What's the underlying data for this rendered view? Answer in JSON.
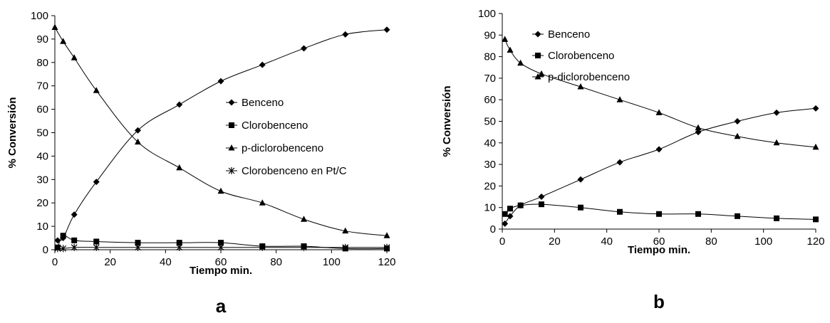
{
  "chart_data": [
    {
      "panel_label": "a",
      "type": "line",
      "xlabel": "Tiempo min.",
      "ylabel": "% Conversión",
      "xlim": [
        0,
        120
      ],
      "ylim": [
        0,
        100
      ],
      "xticks": [
        0,
        20,
        40,
        60,
        80,
        100,
        120
      ],
      "yticks": [
        0,
        10,
        20,
        30,
        40,
        50,
        60,
        70,
        80,
        90,
        100
      ],
      "grid": false,
      "legend_position": "right",
      "series": [
        {
          "name": "Benceno",
          "marker": "diamond",
          "x": [
            1,
            3,
            7,
            15,
            30,
            45,
            60,
            75,
            90,
            105,
            120
          ],
          "y": [
            4,
            5,
            15,
            29,
            51,
            62,
            72,
            79,
            86,
            92,
            94
          ]
        },
        {
          "name": "Clorobenceno",
          "marker": "square",
          "x": [
            1,
            3,
            7,
            15,
            30,
            45,
            60,
            75,
            90,
            105,
            120
          ],
          "y": [
            1,
            6,
            4,
            3.5,
            3,
            3,
            3,
            1.5,
            1.5,
            0.5,
            0.5
          ]
        },
        {
          "name": "p-diclorobenceno",
          "marker": "triangle",
          "x": [
            0,
            3,
            7,
            15,
            30,
            45,
            60,
            75,
            90,
            105,
            120
          ],
          "y": [
            95,
            89,
            82,
            68,
            46,
            35,
            25,
            20,
            13,
            8,
            6
          ]
        },
        {
          "name": "Clorobenceno en Pt/C",
          "marker": "star",
          "x": [
            1,
            3,
            7,
            15,
            30,
            45,
            60,
            75,
            90,
            105,
            120
          ],
          "y": [
            0.5,
            0.5,
            1,
            1,
            1,
            1,
            1,
            1,
            1,
            1,
            1
          ]
        }
      ]
    },
    {
      "panel_label": "b",
      "type": "line",
      "xlabel": "Tiempo min.",
      "ylabel": "% Conversión",
      "xlim": [
        0,
        120
      ],
      "ylim": [
        0,
        100
      ],
      "xticks": [
        0,
        20,
        40,
        60,
        80,
        100,
        120
      ],
      "yticks": [
        0,
        10,
        20,
        30,
        40,
        50,
        60,
        70,
        80,
        90,
        100
      ],
      "grid": false,
      "legend_position": "top-right",
      "series": [
        {
          "name": "Benceno",
          "marker": "diamond",
          "x": [
            1,
            3,
            7,
            15,
            30,
            45,
            60,
            75,
            90,
            105,
            120
          ],
          "y": [
            2.5,
            6,
            11,
            15,
            23,
            31,
            37,
            45,
            50,
            54,
            56
          ]
        },
        {
          "name": "Clorobenceno",
          "marker": "square",
          "x": [
            1,
            3,
            7,
            15,
            30,
            45,
            60,
            75,
            90,
            105,
            120
          ],
          "y": [
            7,
            9.5,
            11,
            11.5,
            10,
            8,
            7,
            7,
            6,
            5,
            4.5
          ]
        },
        {
          "name": "p-diclorobenceno",
          "marker": "triangle",
          "x": [
            1,
            3,
            7,
            15,
            30,
            45,
            60,
            75,
            90,
            105,
            120
          ],
          "y": [
            88,
            83,
            77,
            72,
            66,
            60,
            54,
            47,
            43,
            40,
            38
          ]
        }
      ]
    }
  ]
}
